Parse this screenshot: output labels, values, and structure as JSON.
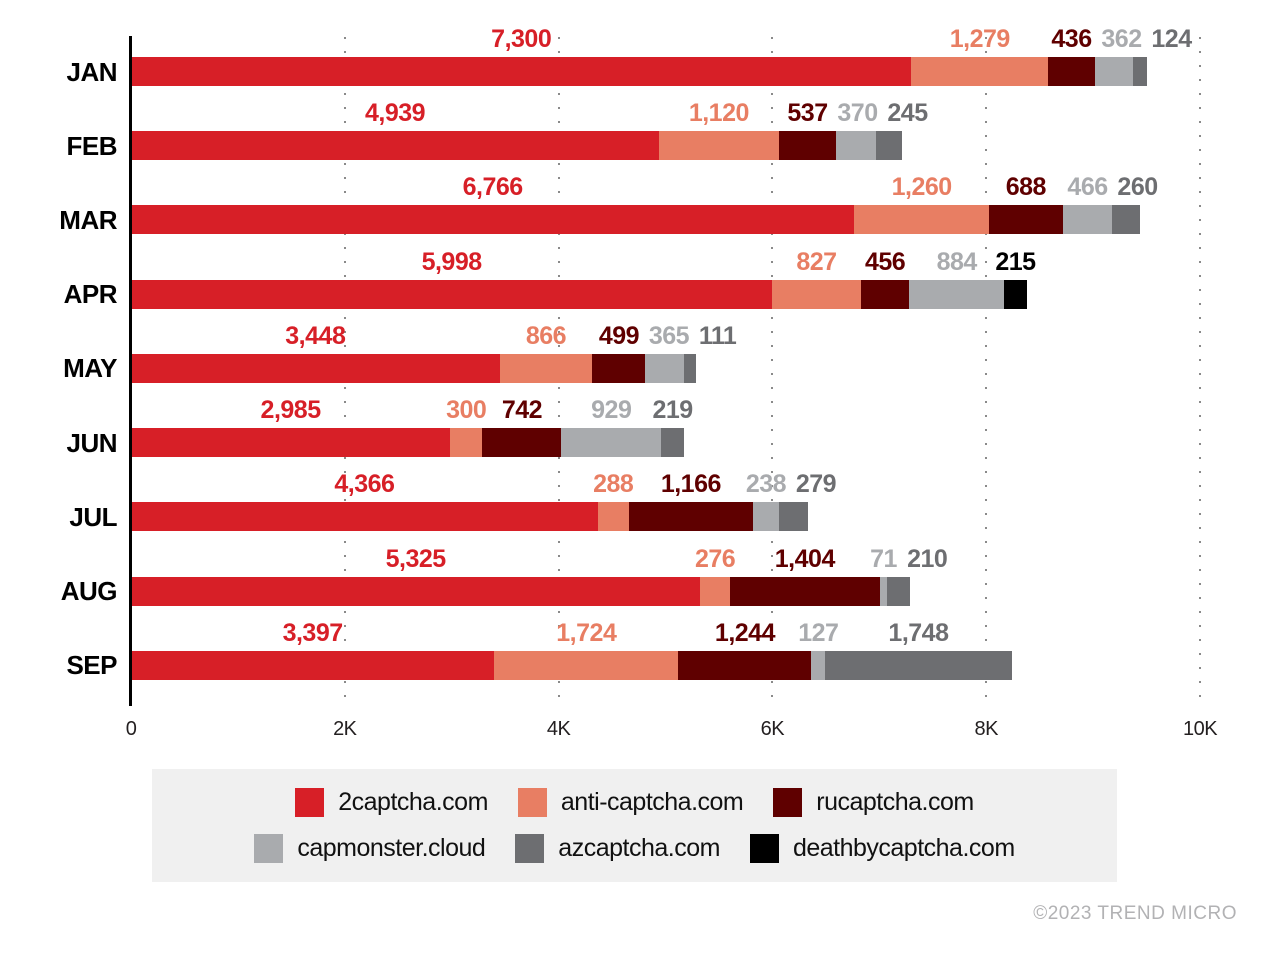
{
  "chart_data": {
    "type": "bar",
    "orientation": "horizontal",
    "stacked": true,
    "title": "",
    "xlabel": "",
    "ylabel": "",
    "grid": "dotted-vertical",
    "legend_position": "bottom",
    "value_labels": "above-segments",
    "xlim": [
      0,
      10000
    ],
    "x_ticks": [
      {
        "value": 0,
        "label": "0"
      },
      {
        "value": 2000,
        "label": "2K"
      },
      {
        "value": 4000,
        "label": "4K"
      },
      {
        "value": 6000,
        "label": "6K"
      },
      {
        "value": 8000,
        "label": "8K"
      },
      {
        "value": 10000,
        "label": "10K"
      }
    ],
    "categories": [
      "JAN",
      "FEB",
      "MAR",
      "APR",
      "MAY",
      "JUN",
      "JUL",
      "AUG",
      "SEP"
    ],
    "series": [
      {
        "name": "2captcha.com",
        "color": "#d71f27",
        "values": [
          7300,
          4939,
          6766,
          5998,
          3448,
          2985,
          4366,
          5325,
          3397
        ]
      },
      {
        "name": "anti-captcha.com",
        "color": "#e87e63",
        "values": [
          1279,
          1120,
          1260,
          827,
          866,
          300,
          288,
          276,
          1724
        ]
      },
      {
        "name": "rucaptcha.com",
        "color": "#5f0000",
        "values": [
          436,
          537,
          688,
          456,
          499,
          742,
          1166,
          1404,
          1244
        ]
      },
      {
        "name": "capmonster.cloud",
        "color": "#a9abae",
        "values": [
          362,
          370,
          466,
          884,
          365,
          929,
          238,
          71,
          127
        ]
      },
      {
        "name": "azcaptcha.com",
        "color": "#6d6e71",
        "values": [
          124,
          245,
          260,
          0,
          111,
          219,
          279,
          210,
          1748
        ]
      },
      {
        "name": "deathbycaptcha.com",
        "color": "#000000",
        "values": [
          0,
          0,
          0,
          215,
          0,
          0,
          0,
          0,
          0
        ]
      }
    ]
  },
  "legend": {
    "rows": [
      [
        0,
        1,
        2
      ],
      [
        3,
        4,
        5
      ]
    ]
  },
  "footer": {
    "copyright": "©2023 TREND MICRO"
  }
}
